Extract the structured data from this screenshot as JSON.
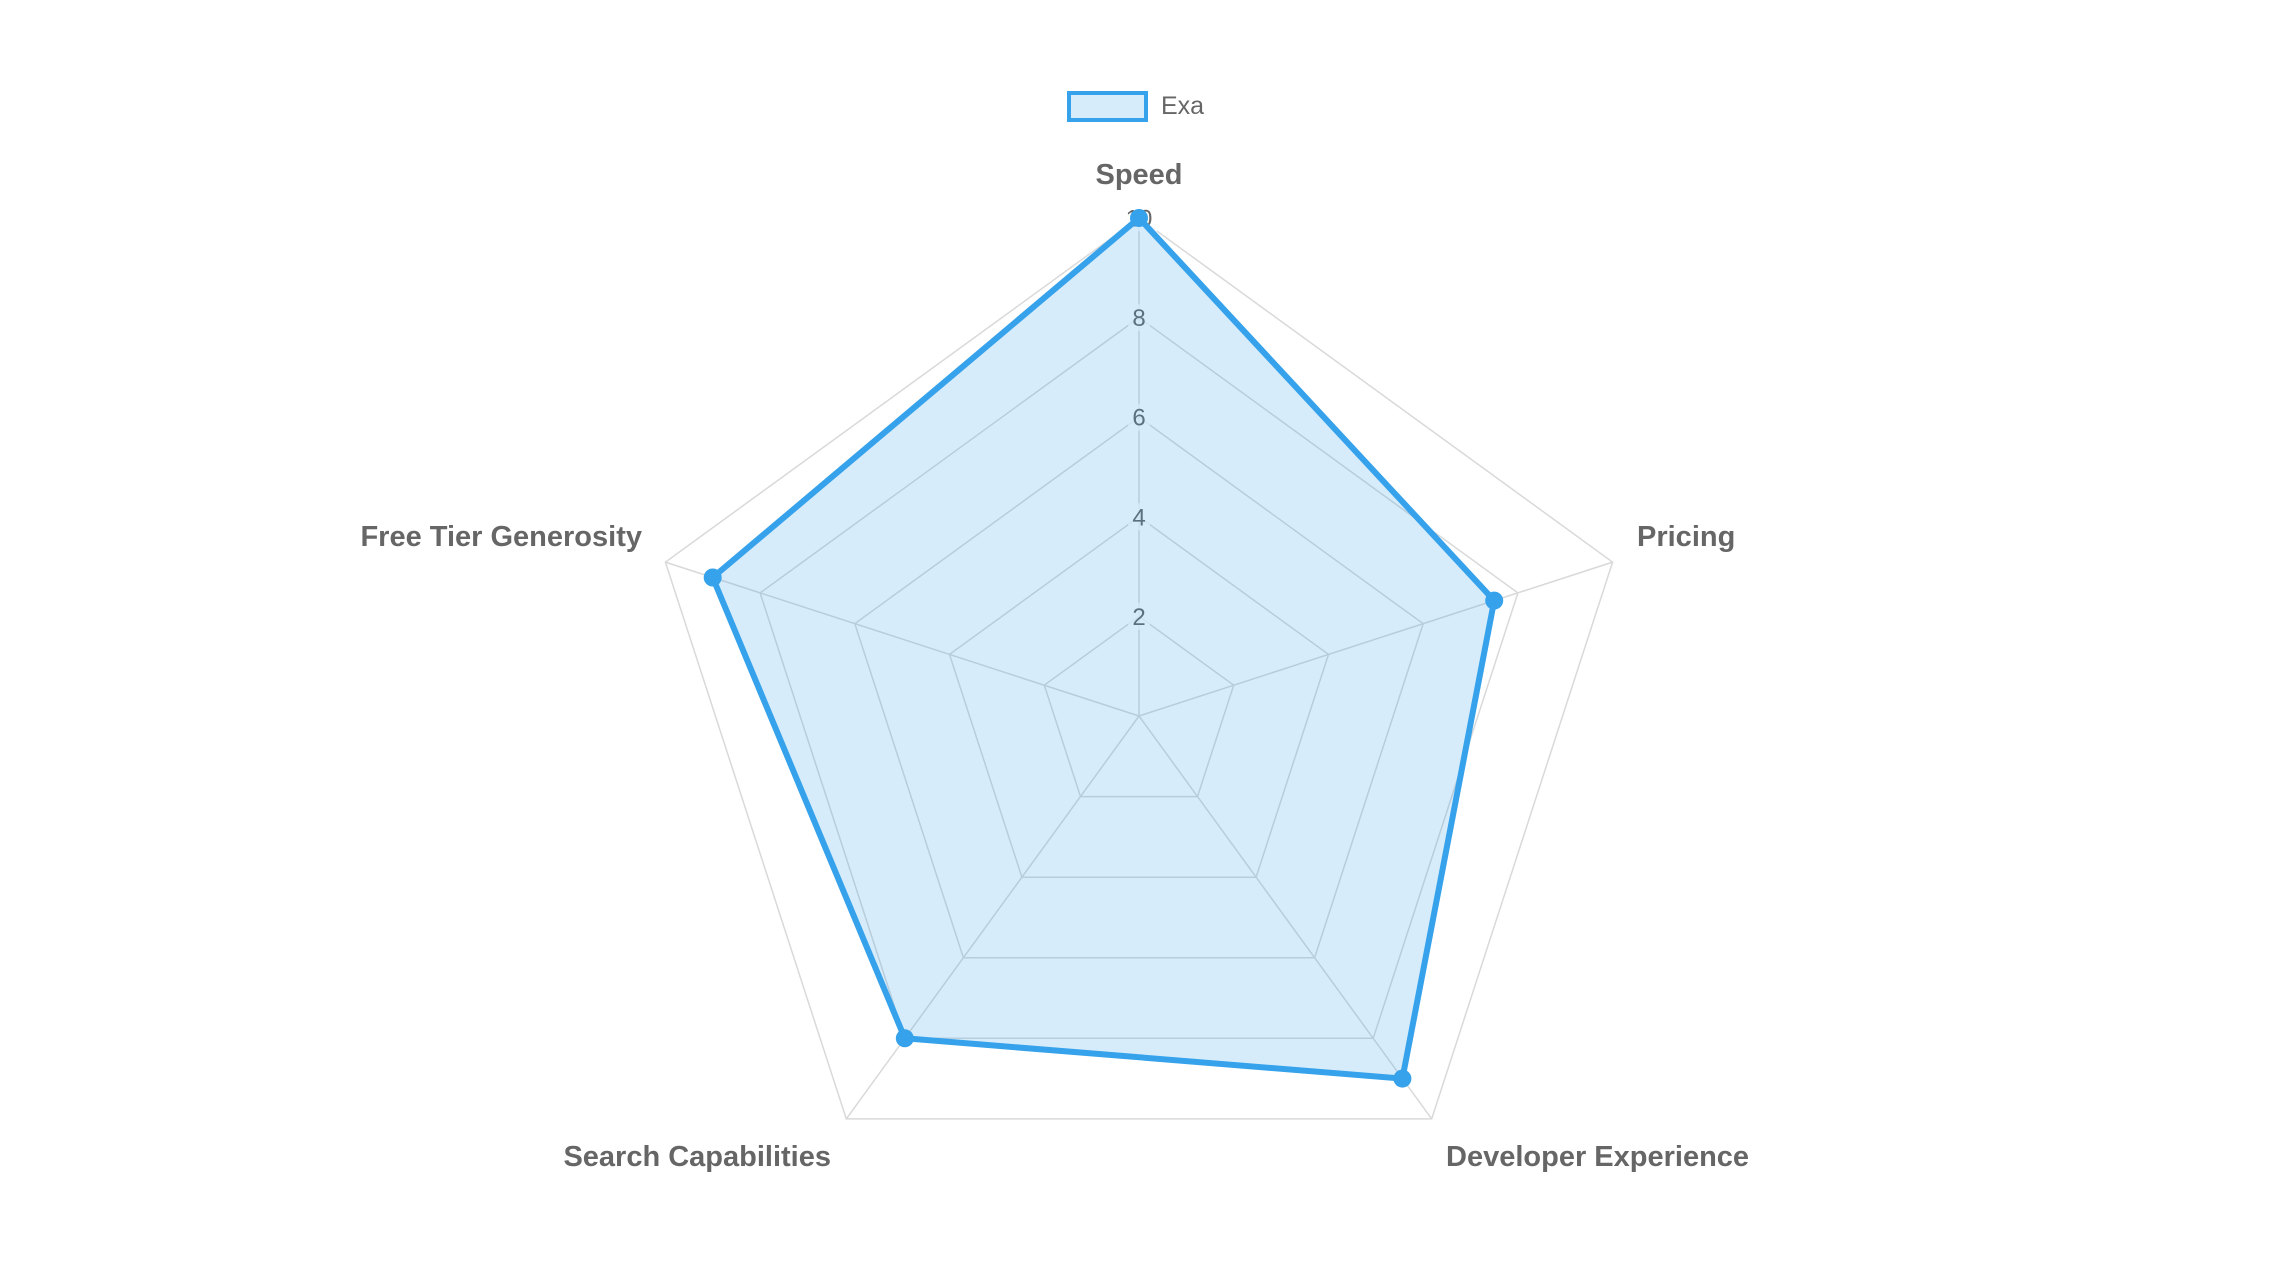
{
  "legend": {
    "position": "top",
    "items": [
      {
        "label": "Exa",
        "line_color": "#36A2EB",
        "fill_color": "rgba(54,162,235,0.2)"
      }
    ]
  },
  "chart_data": {
    "type": "radar",
    "categories": [
      "Speed",
      "Pricing",
      "Developer Experience",
      "Search Capabilities",
      "Free Tier Generosity"
    ],
    "series": [
      {
        "name": "Exa",
        "values": [
          10,
          7.5,
          9,
          8,
          9
        ],
        "line_color": "#36A2EB",
        "fill_color": "rgba(54,162,235,0.2)",
        "point_color": "#36A2EB"
      }
    ],
    "ticks": [
      2,
      4,
      6,
      8,
      10
    ],
    "rmin": 0,
    "rmax": 10,
    "grid": true,
    "grid_color": "#D9D9D9",
    "tick_color": "#666666",
    "label_color": "#666666",
    "tick_backdrop_color": "rgba(255,255,255,0.75)",
    "legend_position": "top"
  }
}
